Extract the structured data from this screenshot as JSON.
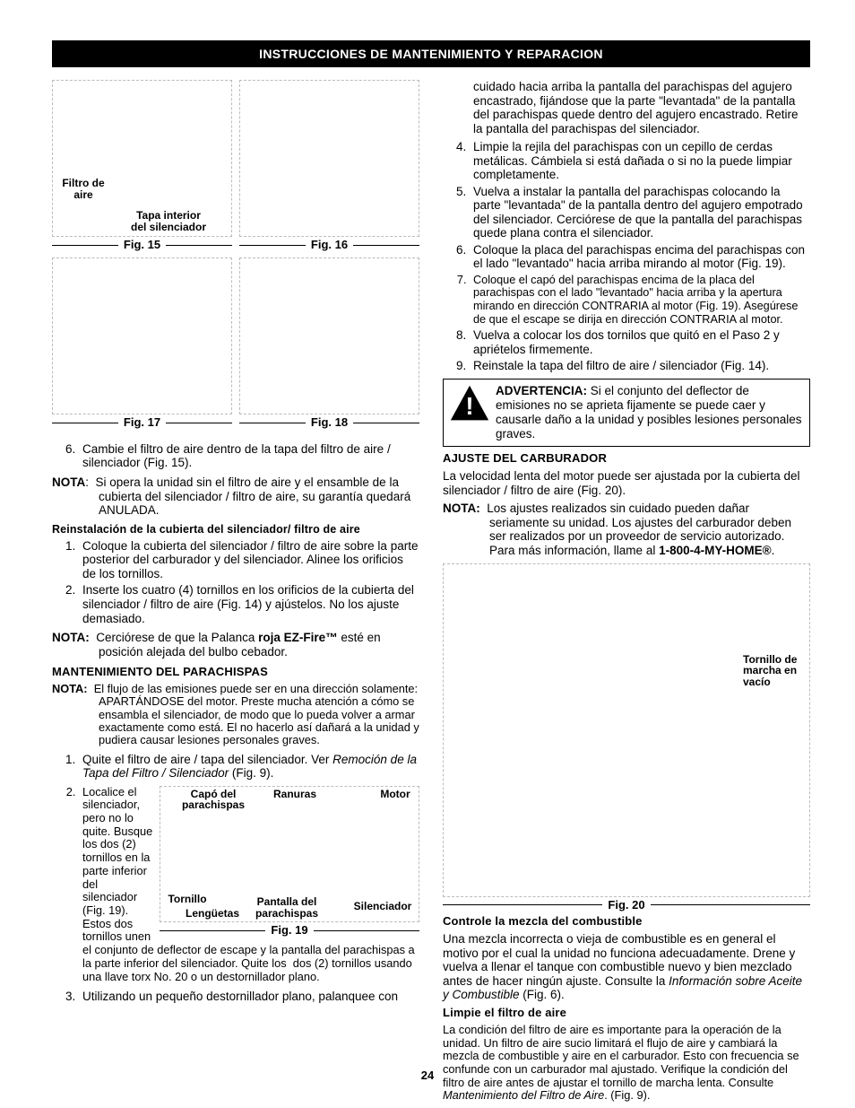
{
  "header": "INSTRUCCIONES DE MANTENIMIENTO Y REPARACION",
  "page_number": "24",
  "figs": {
    "f15": "Fig. 15",
    "f16": "Fig. 16",
    "f17": "Fig. 17",
    "f18": "Fig. 18",
    "f19": "Fig. 19",
    "f20": "Fig. 20"
  },
  "left": {
    "fig15_16_labels": {
      "filtro_de_aire": "Filtro de\naire",
      "tapa_interior": "Tapa interior\ndel silenciador"
    },
    "step6": "Cambie el filtro de aire dentro de la tapa del filtro de aire / silenciador (Fig. 15).",
    "nota1_label": "NOTA",
    "nota1_text": ":  Si opera la unidad sin el filtro de aire y el ensamble de la cubierta del silenciador / filtro de aire, su garantía quedará ANULADA.",
    "reinst_head": "Reinstalación de la cubierta del silenciador/ filtro de aire",
    "reinst_1": "Coloque la cubierta del silenciador / filtro de aire sobre la parte posterior del carburador y del silenciador. Alinee los orificios de los tornillos.",
    "reinst_2": "Inserte los cuatro (4) tornillos en los orificios de la cubierta del silenciador / filtro de aire (Fig. 14) y ajústelos. No los ajuste demasiado.",
    "nota2_label": "NOTA:",
    "nota2_pre": "Cerciórese de que la Palanca ",
    "nota2_bold": "roja EZ-Fire™",
    "nota2_post": " esté en posición alejada del bulbo cebador.",
    "mant_head": "MANTENIMIENTO DEL PARACHISPAS",
    "nota3_label": "NOTA:",
    "nota3_text": "El flujo de las emisiones puede ser en una dirección solamente: APARTÁNDOSE del motor. Preste mucha atención a cómo se ensambla el silenciador, de modo que lo pueda volver a armar exactamente como está. El no hacerlo así dañará a la unidad y pudiera causar lesiones personales graves.",
    "mant_1_pre": "Quite el filtro de aire / tapa del silenciador. Ver ",
    "mant_1_ital": "Remoción de la Tapa del Filtro / Silenciador",
    "mant_1_post": " (Fig. 9).",
    "mant_2": "Localice el silenciador, pero no lo quite. Busque los dos (2) tornillos en la parte inferior del silenciador (Fig. 19). Estos dos tornillos unen el conjunto de deflector de escape y la pantalla del parachispas a la parte inferior del silenciador. Quite los  dos (2) tornillos usando una llave torx No. 20 o un destornillador plano.",
    "mant_3": "Utilizando un pequeño destornillador plano, palanquee con",
    "fig19_labels": {
      "capo": "Capó del\nparachispas",
      "ranuras": "Ranuras",
      "motor": "Motor",
      "tornillo": "Tornillo",
      "lenguetas": "Lengüetas",
      "pantalla": "Pantalla del\nparachispas",
      "silenciador": "Silenciador"
    }
  },
  "right": {
    "cont_top": "cuidado hacia arriba la pantalla del parachispas del agujero encastrado, fijándose que la parte \"levantada\" de la pantalla del parachispas quede dentro del agujero encastrado. Retire la pantalla del parachispas del silenciador.",
    "s4": "Limpie la rejila del parachispas con un cepillo de cerdas metálicas. Cámbiela si está dañada o si no la puede limpiar completamente.",
    "s5": "Vuelva a instalar la pantalla del parachispas colocando la parte \"levantada\" de la pantalla dentro del agujero empotrado del silenciador. Cerciórese de que la pantalla del parachispas quede plana contra el silenciador.",
    "s6": "Coloque la placa del parachispas encima del parachispas con el lado \"levantado\" hacia arriba mirando al motor (Fig. 19).",
    "s7": "Coloque el capó del parachispas encima de la placa del parachispas con el lado \"levantado\" hacia arriba y la apertura mirando en dirección CONTRARIA al motor (Fig. 19). Asegúrese de que el escape se dirija en dirección CONTRARIA al motor.",
    "s8": "Vuelva a colocar los dos tornilos que quitó en el Paso 2 y apriételos firmemente.",
    "s9": "Reinstale la tapa del filtro de aire / silenciador (Fig. 14).",
    "warn_label": "ADVERTENCIA:",
    "warn_text": " Si el conjunto del deflector de emisiones no se aprieta fijamente se puede caer y causarle daño a la unidad y posibles lesiones personales graves.",
    "ajuste_head": "AJUSTE DEL CARBURADOR",
    "ajuste_p": "La velocidad lenta del motor puede ser ajustada por la cubierta del silenciador / filtro de aire (Fig. 20).",
    "nota4_label": "NOTA:",
    "nota4_pre": "Los ajustes realizados sin cuidado pueden dañar seriamente su unidad. Los ajustes del carburador deben ser realizados por un proveedor de servicio autorizado. Para más información, llame al ",
    "nota4_bold": "1-800-4-MY-HOME®",
    "nota4_post": ".",
    "fig20_label": "Tornillo de\nmarcha en\nvacío",
    "controle_head": "Controle la mezcla del combustible",
    "controle_pre": "Una mezcla incorrecta o vieja de combustible es en general el motivo por el cual la unidad no funciona adecuadamente. Drene y vuelva a llenar el tanque con combustible nuevo y bien mezclado antes de hacer ningún ajuste. Consulte la ",
    "controle_ital": "Información sobre Aceite y Combustible",
    "controle_post": " (Fig. 6).",
    "limpie_head": "Limpie el filtro de aire",
    "limpie_pre": "La condición del filtro de aire es importante para la operación de la unidad. Un filtro de aire sucio limitará el flujo de aire y cambiará la mezcla de combustible y aire en el carburador. Esto con frecuencia se confunde con un carburador mal ajustado. Verifique la condición del filtro de aire antes de ajustar el tornillo de marcha lenta. Consulte ",
    "limpie_ital": "Mantenimiento del Filtro de Aire",
    "limpie_post": ". (Fig. 9)."
  }
}
